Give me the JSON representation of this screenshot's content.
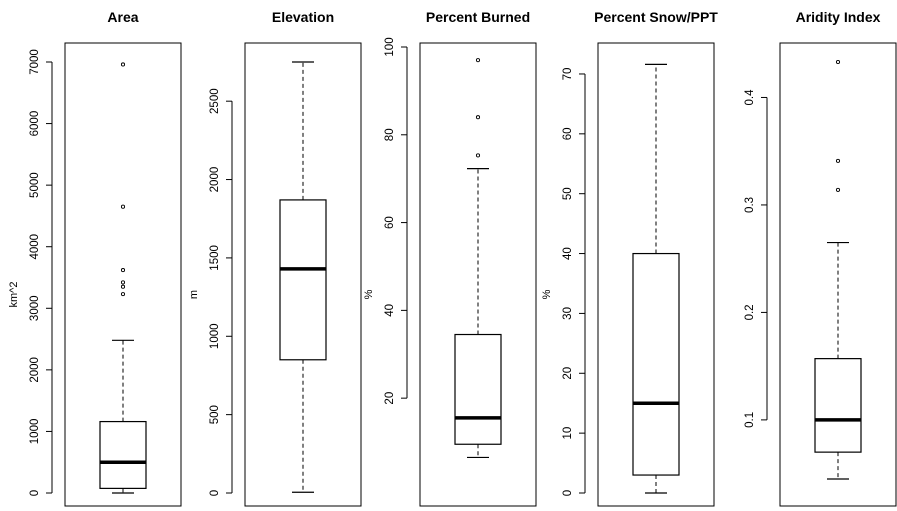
{
  "chart_data": [
    {
      "type": "boxplot",
      "title": "Area",
      "ylabel": "km^2",
      "ylim": [
        0,
        7000
      ],
      "ticks": [
        0,
        1000,
        2000,
        3000,
        4000,
        5000,
        6000,
        7000
      ],
      "whisker_low": 0,
      "q1": 75,
      "median": 500,
      "q3": 1160,
      "whisker_high": 2480,
      "outliers": [
        3230,
        3350,
        3420,
        3620,
        4650,
        6960
      ]
    },
    {
      "type": "boxplot",
      "title": "Elevation",
      "ylabel": "m",
      "ylim": [
        0,
        2750
      ],
      "ticks": [
        0,
        500,
        1000,
        1500,
        2000,
        2500
      ],
      "whisker_low": 5,
      "q1": 850,
      "median": 1430,
      "q3": 1870,
      "whisker_high": 2750,
      "outliers": []
    },
    {
      "type": "boxplot",
      "title": "Percent Burned",
      "ylabel": "%",
      "ylim": [
        5,
        100
      ],
      "ticks": [
        20,
        40,
        60,
        80,
        100
      ],
      "whisker_low": 6.5,
      "q1": 9.5,
      "median": 15.5,
      "q3": 34.5,
      "whisker_high": 72.3,
      "outliers": [
        75.3,
        84,
        97
      ]
    },
    {
      "type": "boxplot",
      "title": "Percent Snow/PPT",
      "ylabel": "%",
      "ylim": [
        0,
        72
      ],
      "ticks": [
        0,
        10,
        20,
        30,
        40,
        50,
        60,
        70
      ],
      "whisker_low": 0,
      "q1": 3,
      "median": 15,
      "q3": 40,
      "whisker_high": 71.6,
      "outliers": []
    },
    {
      "type": "boxplot",
      "title": "Aridity Index",
      "ylabel": "",
      "ylim": [
        0.045,
        0.433
      ],
      "ticks": [
        0.1,
        0.2,
        0.3,
        0.4
      ],
      "whisker_low": 0.045,
      "q1": 0.07,
      "median": 0.1,
      "q3": 0.157,
      "whisker_high": 0.265,
      "outliers": [
        0.314,
        0.341,
        0.433
      ]
    }
  ]
}
